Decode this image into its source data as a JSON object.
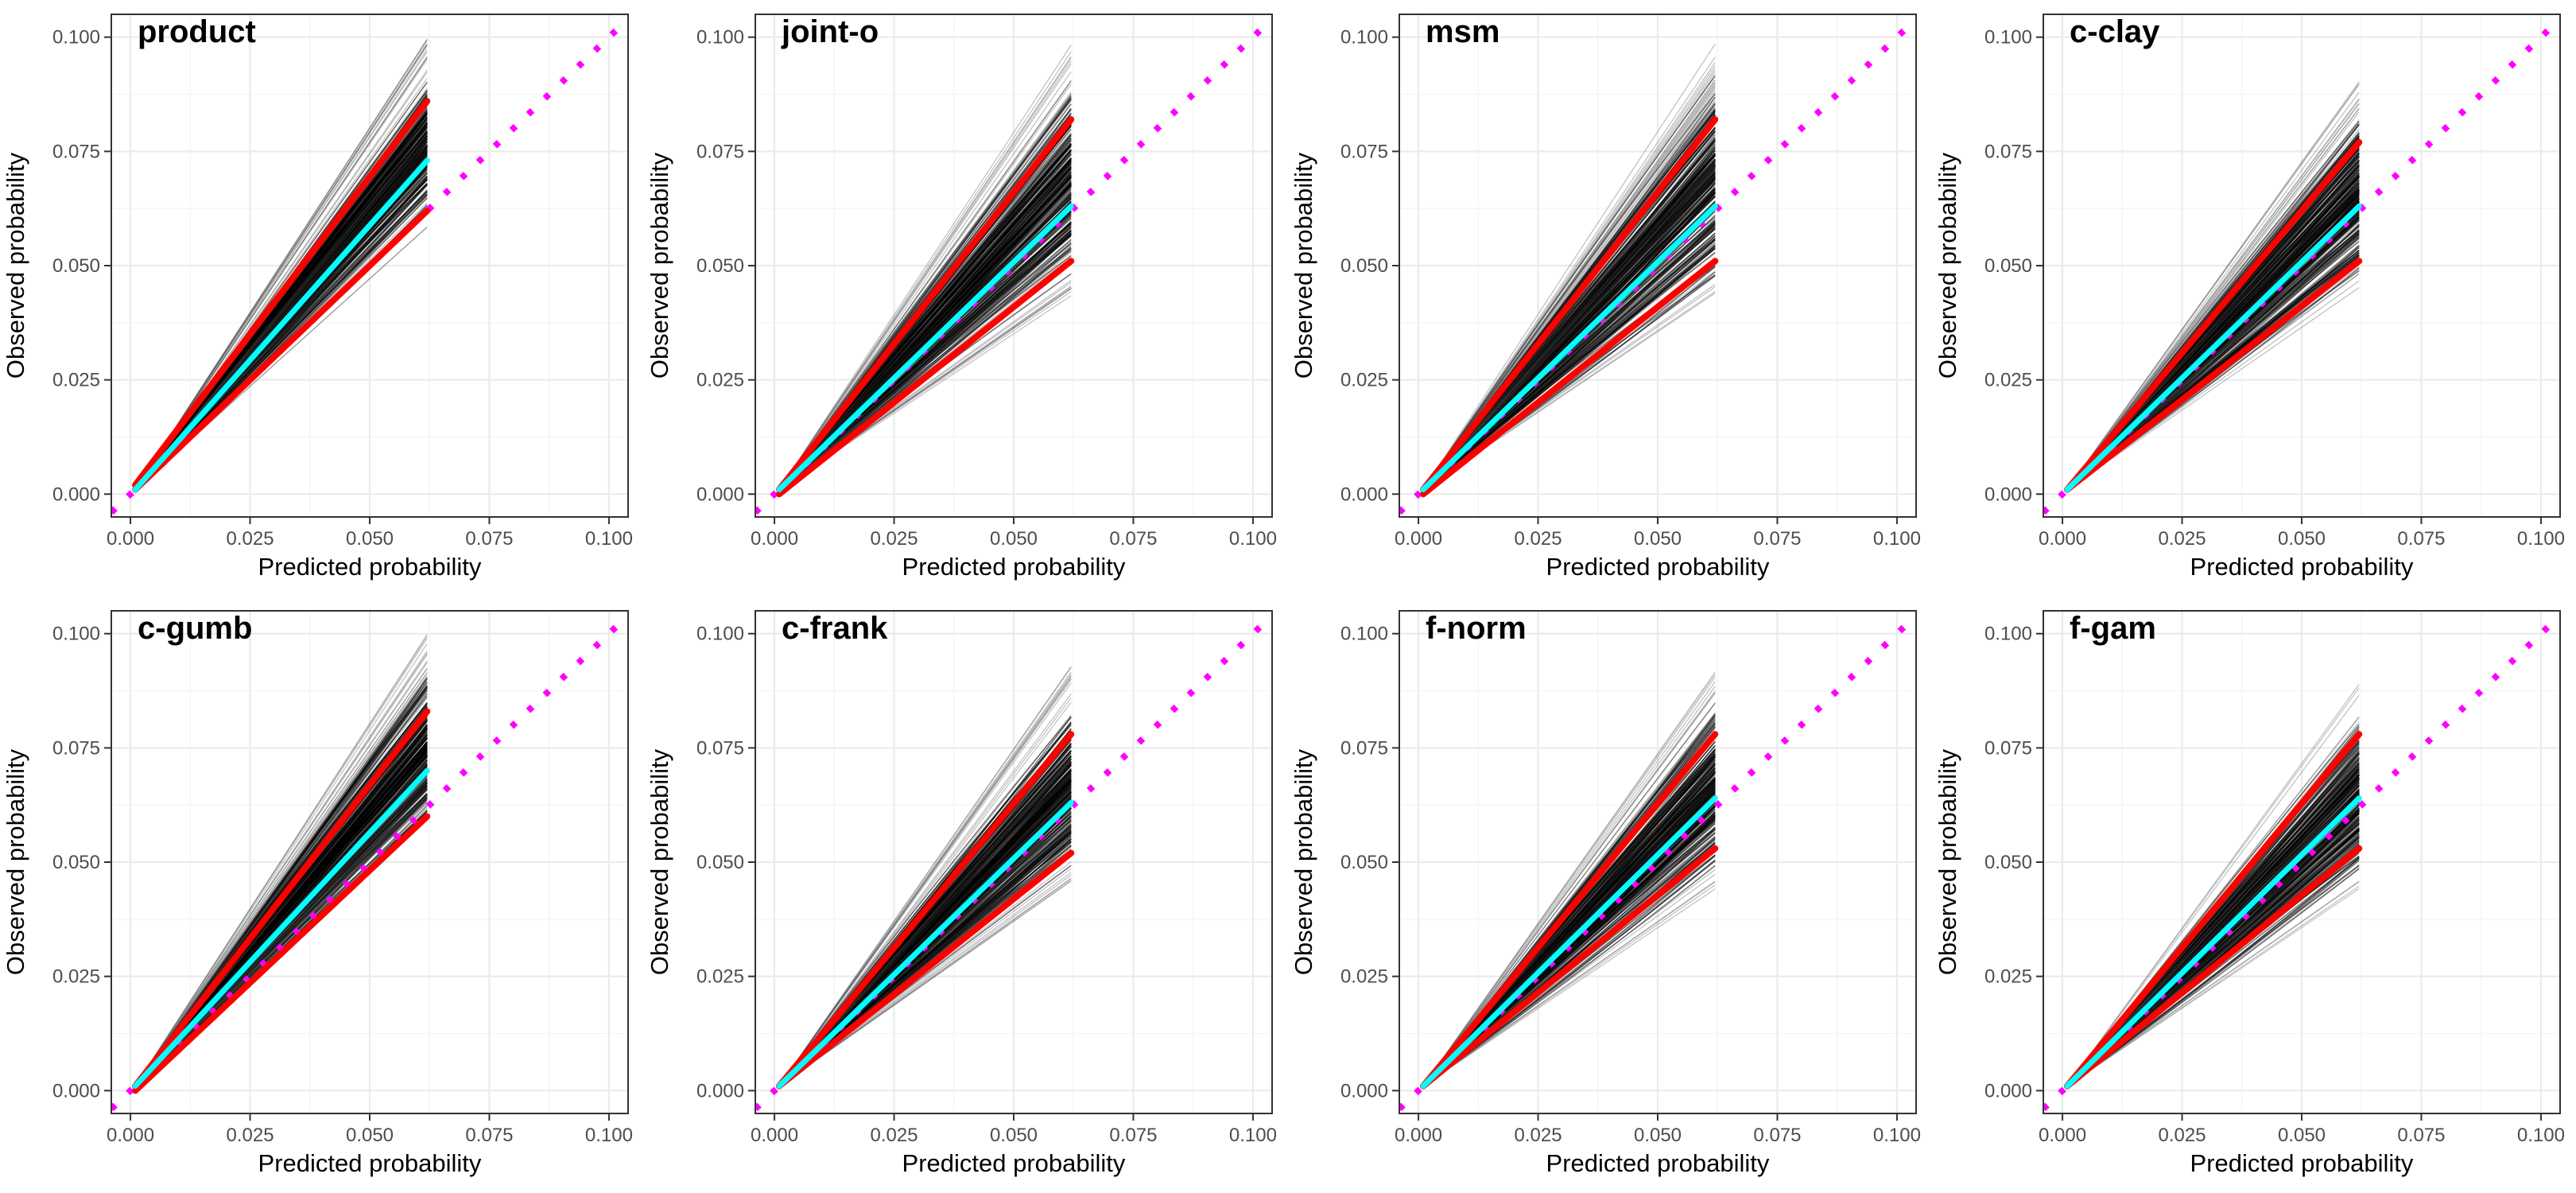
{
  "chart_data": [
    {
      "type": "line",
      "title": "product",
      "xlabel": "Predicted probability",
      "ylabel": "Observed probability",
      "xlim": [
        -0.004,
        0.104
      ],
      "ylim": [
        -0.005,
        0.105
      ],
      "xticks": [
        "0.000",
        "0.025",
        "0.050",
        "0.075",
        "0.100"
      ],
      "yticks": [
        "0.000",
        "0.025",
        "0.050",
        "0.075",
        "0.100"
      ],
      "band_x_max": 0.062,
      "fan_top_y": 0.1,
      "fan_bottom_y": 0.058,
      "dense_top_y": 0.091,
      "dense_bottom_y": 0.061,
      "series": [
        {
          "color": "#00ffff",
          "x": [
            0.001,
            0.062
          ],
          "y": [
            0.001,
            0.073
          ]
        },
        {
          "color": "#ff0000",
          "x": [
            0.001,
            0.062
          ],
          "y": [
            0.002,
            0.086
          ]
        },
        {
          "color": "#ff0000",
          "x": [
            0.001,
            0.062
          ],
          "y": [
            0.001,
            0.062
          ]
        }
      ],
      "reference_line": {
        "color": "#ff00ff",
        "x": [
          -0.004,
          0.104
        ],
        "y": [
          -0.004,
          0.104
        ]
      }
    },
    {
      "type": "line",
      "title": "joint-o",
      "xlabel": "Predicted probability",
      "ylabel": "Observed probability",
      "xlim": [
        -0.004,
        0.104
      ],
      "ylim": [
        -0.005,
        0.105
      ],
      "xticks": [
        "0.000",
        "0.025",
        "0.050",
        "0.075",
        "0.100"
      ],
      "yticks": [
        "0.000",
        "0.025",
        "0.050",
        "0.075",
        "0.100"
      ],
      "band_x_max": 0.062,
      "fan_top_y": 0.1,
      "fan_bottom_y": 0.043,
      "dense_top_y": 0.09,
      "dense_bottom_y": 0.047,
      "series": [
        {
          "color": "#00ffff",
          "x": [
            0.001,
            0.062
          ],
          "y": [
            0.001,
            0.063
          ]
        },
        {
          "color": "#ff0000",
          "x": [
            0.001,
            0.062
          ],
          "y": [
            0.001,
            0.082
          ]
        },
        {
          "color": "#ff0000",
          "x": [
            0.001,
            0.062
          ],
          "y": [
            0.0,
            0.051
          ]
        }
      ],
      "reference_line": {
        "color": "#ff00ff",
        "x": [
          -0.004,
          0.104
        ],
        "y": [
          -0.004,
          0.104
        ]
      }
    },
    {
      "type": "line",
      "title": "msm",
      "xlabel": "Predicted probability",
      "ylabel": "Observed probability",
      "xlim": [
        -0.004,
        0.104
      ],
      "ylim": [
        -0.005,
        0.105
      ],
      "xticks": [
        "0.000",
        "0.025",
        "0.050",
        "0.075",
        "0.100"
      ],
      "yticks": [
        "0.000",
        "0.025",
        "0.050",
        "0.075",
        "0.100"
      ],
      "band_x_max": 0.062,
      "fan_top_y": 0.1,
      "fan_bottom_y": 0.043,
      "dense_top_y": 0.092,
      "dense_bottom_y": 0.046,
      "series": [
        {
          "color": "#00ffff",
          "x": [
            0.001,
            0.062
          ],
          "y": [
            0.001,
            0.063
          ]
        },
        {
          "color": "#ff0000",
          "x": [
            0.001,
            0.062
          ],
          "y": [
            0.001,
            0.082
          ]
        },
        {
          "color": "#ff0000",
          "x": [
            0.001,
            0.062
          ],
          "y": [
            0.0,
            0.051
          ]
        }
      ],
      "reference_line": {
        "color": "#ff00ff",
        "x": [
          -0.004,
          0.104
        ],
        "y": [
          -0.004,
          0.104
        ]
      }
    },
    {
      "type": "line",
      "title": "c-clay",
      "xlabel": "Predicted probability",
      "ylabel": "Observed probability",
      "xlim": [
        -0.004,
        0.104
      ],
      "ylim": [
        -0.005,
        0.105
      ],
      "xticks": [
        "0.000",
        "0.025",
        "0.050",
        "0.075",
        "0.100"
      ],
      "yticks": [
        "0.000",
        "0.025",
        "0.050",
        "0.075",
        "0.100"
      ],
      "band_x_max": 0.062,
      "fan_top_y": 0.091,
      "fan_bottom_y": 0.044,
      "dense_top_y": 0.083,
      "dense_bottom_y": 0.048,
      "series": [
        {
          "color": "#00ffff",
          "x": [
            0.001,
            0.062
          ],
          "y": [
            0.001,
            0.063
          ]
        },
        {
          "color": "#ff0000",
          "x": [
            0.001,
            0.062
          ],
          "y": [
            0.001,
            0.077
          ]
        },
        {
          "color": "#ff0000",
          "x": [
            0.001,
            0.062
          ],
          "y": [
            0.001,
            0.051
          ]
        }
      ],
      "reference_line": {
        "color": "#ff00ff",
        "x": [
          -0.004,
          0.104
        ],
        "y": [
          -0.004,
          0.104
        ]
      }
    },
    {
      "type": "line",
      "title": "c-gumb",
      "xlabel": "Predicted probability",
      "ylabel": "Observed probability",
      "xlim": [
        -0.004,
        0.104
      ],
      "ylim": [
        -0.005,
        0.105
      ],
      "xticks": [
        "0.000",
        "0.025",
        "0.050",
        "0.075",
        "0.100"
      ],
      "yticks": [
        "0.000",
        "0.025",
        "0.050",
        "0.075",
        "0.100"
      ],
      "band_x_max": 0.062,
      "fan_top_y": 0.1,
      "fan_bottom_y": 0.056,
      "dense_top_y": 0.091,
      "dense_bottom_y": 0.058,
      "series": [
        {
          "color": "#00ffff",
          "x": [
            0.001,
            0.062
          ],
          "y": [
            0.001,
            0.07
          ]
        },
        {
          "color": "#ff0000",
          "x": [
            0.001,
            0.062
          ],
          "y": [
            0.001,
            0.083
          ]
        },
        {
          "color": "#ff0000",
          "x": [
            0.001,
            0.062
          ],
          "y": [
            0.0,
            0.06
          ]
        }
      ],
      "reference_line": {
        "color": "#ff00ff",
        "x": [
          -0.004,
          0.104
        ],
        "y": [
          -0.004,
          0.104
        ]
      }
    },
    {
      "type": "line",
      "title": "c-frank",
      "xlabel": "Predicted probability",
      "ylabel": "Observed probability",
      "xlim": [
        -0.004,
        0.104
      ],
      "ylim": [
        -0.005,
        0.105
      ],
      "xticks": [
        "0.000",
        "0.025",
        "0.050",
        "0.075",
        "0.100"
      ],
      "yticks": [
        "0.000",
        "0.025",
        "0.050",
        "0.075",
        "0.100"
      ],
      "band_x_max": 0.062,
      "fan_top_y": 0.094,
      "fan_bottom_y": 0.044,
      "dense_top_y": 0.084,
      "dense_bottom_y": 0.048,
      "series": [
        {
          "color": "#00ffff",
          "x": [
            0.001,
            0.062
          ],
          "y": [
            0.001,
            0.063
          ]
        },
        {
          "color": "#ff0000",
          "x": [
            0.001,
            0.062
          ],
          "y": [
            0.001,
            0.078
          ]
        },
        {
          "color": "#ff0000",
          "x": [
            0.001,
            0.062
          ],
          "y": [
            0.001,
            0.052
          ]
        }
      ],
      "reference_line": {
        "color": "#ff00ff",
        "x": [
          -0.004,
          0.104
        ],
        "y": [
          -0.004,
          0.104
        ]
      }
    },
    {
      "type": "line",
      "title": "f-norm",
      "xlabel": "Predicted probability",
      "ylabel": "Observed probability",
      "xlim": [
        -0.004,
        0.104
      ],
      "ylim": [
        -0.005,
        0.105
      ],
      "xticks": [
        "0.000",
        "0.025",
        "0.050",
        "0.075",
        "0.100"
      ],
      "yticks": [
        "0.000",
        "0.025",
        "0.050",
        "0.075",
        "0.100"
      ],
      "band_x_max": 0.062,
      "fan_top_y": 0.094,
      "fan_bottom_y": 0.044,
      "dense_top_y": 0.084,
      "dense_bottom_y": 0.048,
      "series": [
        {
          "color": "#00ffff",
          "x": [
            0.001,
            0.062
          ],
          "y": [
            0.001,
            0.064
          ]
        },
        {
          "color": "#ff0000",
          "x": [
            0.001,
            0.062
          ],
          "y": [
            0.001,
            0.078
          ]
        },
        {
          "color": "#ff0000",
          "x": [
            0.001,
            0.062
          ],
          "y": [
            0.001,
            0.053
          ]
        }
      ],
      "reference_line": {
        "color": "#ff00ff",
        "x": [
          -0.004,
          0.104
        ],
        "y": [
          -0.004,
          0.104
        ]
      }
    },
    {
      "type": "line",
      "title": "f-gam",
      "xlabel": "Predicted probability",
      "ylabel": "Observed probability",
      "xlim": [
        -0.004,
        0.104
      ],
      "ylim": [
        -0.005,
        0.105
      ],
      "xticks": [
        "0.000",
        "0.025",
        "0.050",
        "0.075",
        "0.100"
      ],
      "yticks": [
        "0.000",
        "0.025",
        "0.050",
        "0.075",
        "0.100"
      ],
      "band_x_max": 0.062,
      "fan_top_y": 0.089,
      "fan_bottom_y": 0.044,
      "dense_top_y": 0.082,
      "dense_bottom_y": 0.048,
      "series": [
        {
          "color": "#00ffff",
          "x": [
            0.001,
            0.062
          ],
          "y": [
            0.001,
            0.064
          ]
        },
        {
          "color": "#ff0000",
          "x": [
            0.001,
            0.062
          ],
          "y": [
            0.001,
            0.078
          ]
        },
        {
          "color": "#ff0000",
          "x": [
            0.001,
            0.062
          ],
          "y": [
            0.001,
            0.053
          ]
        }
      ],
      "reference_line": {
        "color": "#ff00ff",
        "x": [
          -0.004,
          0.104
        ],
        "y": [
          -0.004,
          0.104
        ]
      }
    }
  ]
}
